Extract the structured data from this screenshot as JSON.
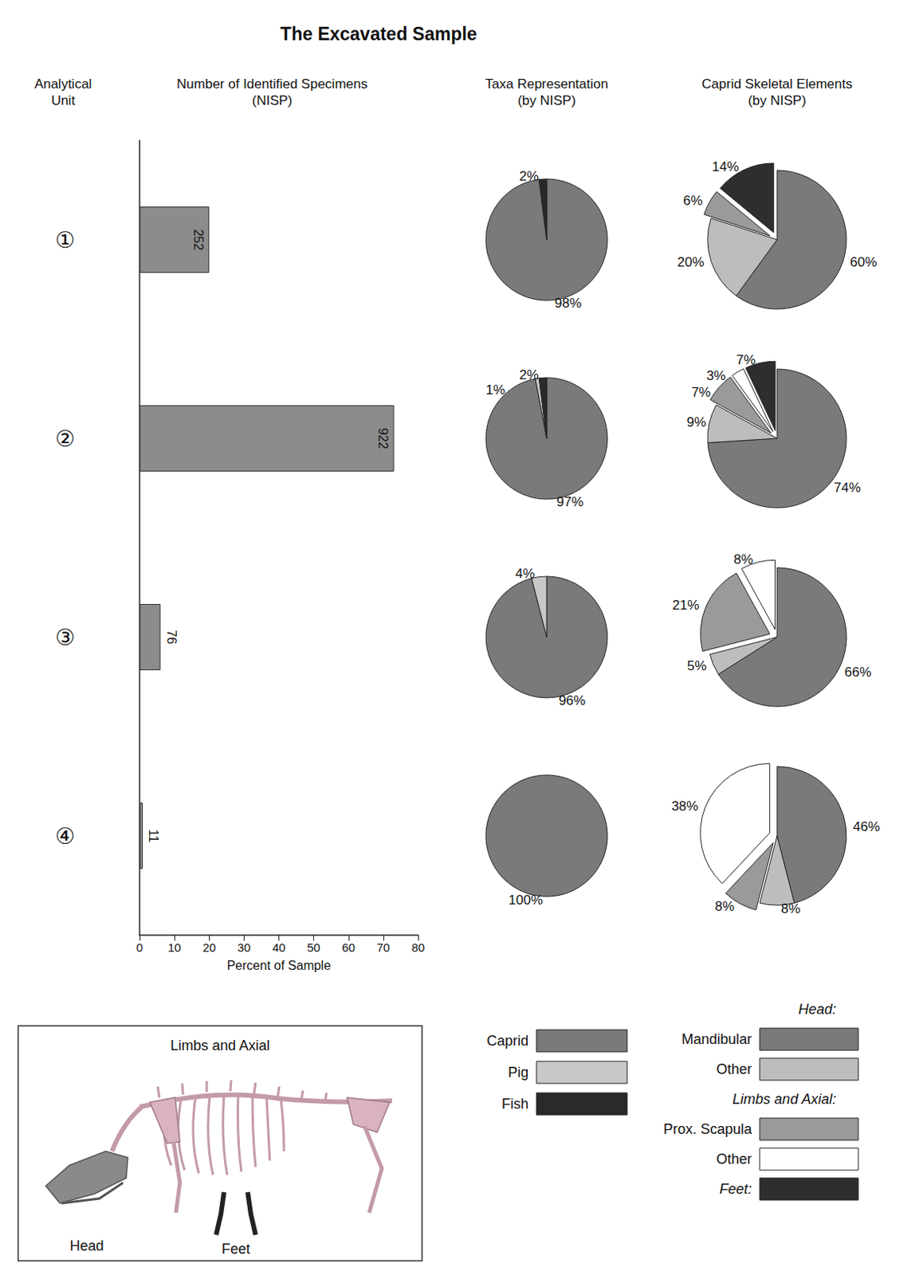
{
  "title": "The Excavated Sample",
  "chart_data": [
    {
      "type": "bar",
      "orientation": "horizontal",
      "title": "Number of Identified Specimens (NISP)",
      "ylabel": "Analytical Unit",
      "xlabel": "Percent of Sample",
      "categories": [
        "①",
        "②",
        "③",
        "④"
      ],
      "values": [
        20.0,
        73.1,
        6.0,
        0.9
      ],
      "nisp": [
        252,
        922,
        76,
        11
      ],
      "color": "#8c8c8c",
      "xlim": [
        0,
        80
      ],
      "xticks": [
        0,
        10,
        20,
        30,
        40,
        50,
        60,
        70,
        80
      ],
      "grid": false
    },
    {
      "type": "pie",
      "title": "Taxa Representation (by NISP)",
      "data_labels": true,
      "key": [
        {
          "name": "Caprid",
          "color": "#7a7a7a"
        },
        {
          "name": "Pig",
          "color": "#c8c8c8"
        },
        {
          "name": "Fish",
          "color": "#2a2a2a"
        }
      ],
      "pies": [
        {
          "unit": "①",
          "categories": [
            "Caprid",
            "Fish"
          ],
          "values": [
            98,
            2
          ],
          "value_labels": [
            "98%",
            "2%"
          ],
          "colors": [
            "#7a7a7a",
            "#2a2a2a"
          ]
        },
        {
          "unit": "②",
          "categories": [
            "Caprid",
            "Pig",
            "Fish"
          ],
          "values": [
            97,
            1,
            2
          ],
          "value_labels": [
            "97%",
            "1%",
            "2%"
          ],
          "colors": [
            "#7a7a7a",
            "#c8c8c8",
            "#2a2a2a"
          ]
        },
        {
          "unit": "③",
          "categories": [
            "Caprid",
            "Pig"
          ],
          "values": [
            96,
            4
          ],
          "value_labels": [
            "96%",
            "4%"
          ],
          "colors": [
            "#7a7a7a",
            "#c8c8c8"
          ]
        },
        {
          "unit": "④",
          "categories": [
            "Caprid"
          ],
          "values": [
            100
          ],
          "value_labels": [
            "100%"
          ],
          "colors": [
            "#7a7a7a"
          ]
        }
      ]
    },
    {
      "type": "pie",
      "title": "Caprid Skeletal Elements (by NISP)",
      "data_labels": true,
      "key": [
        {
          "group": "Head:",
          "items": [
            {
              "name": "Mandibular",
              "color": "#7a7a7a"
            },
            {
              "name": "Other",
              "color": "#bdbdbd"
            }
          ]
        },
        {
          "group": "Limbs and Axial:",
          "items": [
            {
              "name": "Prox. Scapula",
              "color": "#9a9a9a"
            },
            {
              "name": "Other",
              "color": "#ffffff"
            }
          ]
        },
        {
          "group": "Feet:",
          "color": "#2e2e2e"
        }
      ],
      "pies": [
        {
          "unit": "①",
          "categories": [
            "Mandibular",
            "Other",
            "Prox. Scapula",
            "Feet"
          ],
          "groups": [
            "Head:",
            "Head:",
            "Limbs and Axial:",
            "Feet:"
          ],
          "values": [
            60,
            20,
            6,
            14
          ],
          "value_labels": [
            "60%",
            "20%",
            "6%",
            "14%"
          ],
          "colors": [
            "#7a7a7a",
            "#bdbdbd",
            "#9a9a9a",
            "#2e2e2e"
          ]
        },
        {
          "unit": "②",
          "categories": [
            "Mandibular",
            "Other",
            "Prox. Scapula",
            "Other",
            "Feet"
          ],
          "groups": [
            "Head:",
            "Head:",
            "Limbs and Axial:",
            "Limbs and Axial:",
            "Feet:"
          ],
          "values": [
            74,
            9,
            7,
            3,
            7
          ],
          "value_labels": [
            "74%",
            "9%",
            "7%",
            "3%",
            "7%"
          ],
          "colors": [
            "#7a7a7a",
            "#bdbdbd",
            "#9a9a9a",
            "#ffffff",
            "#2e2e2e"
          ]
        },
        {
          "unit": "③",
          "categories": [
            "Mandibular",
            "Other",
            "Prox. Scapula",
            "Other"
          ],
          "groups": [
            "Head:",
            "Head:",
            "Limbs and Axial:",
            "Limbs and Axial:"
          ],
          "values": [
            66,
            5,
            21,
            8
          ],
          "value_labels": [
            "66%",
            "5%",
            "21%",
            "8%"
          ],
          "colors": [
            "#7a7a7a",
            "#bdbdbd",
            "#9a9a9a",
            "#ffffff"
          ]
        },
        {
          "unit": "④",
          "categories": [
            "Mandibular",
            "Other",
            "Prox. Scapula",
            "Other"
          ],
          "groups": [
            "Head:",
            "Head:",
            "Limbs and Axial:",
            "Limbs and Axial:"
          ],
          "values": [
            46,
            8,
            8,
            38
          ],
          "value_labels": [
            "46%",
            "8%",
            "8%",
            "38%"
          ],
          "colors": [
            "#7a7a7a",
            "#bdbdbd",
            "#9a9a9a",
            "#ffffff"
          ]
        }
      ]
    }
  ],
  "illustration": {
    "labels": {
      "axial": "Limbs and Axial",
      "head": "Head",
      "feet": "Feet"
    }
  }
}
